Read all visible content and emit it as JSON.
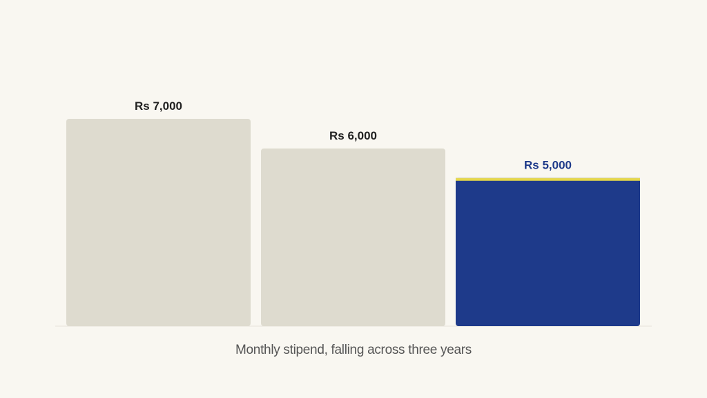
{
  "chart_data": {
    "type": "bar",
    "categories": [
      "",
      "",
      ""
    ],
    "values": [
      7000,
      6000,
      5000
    ],
    "value_labels": [
      "Rs 7,000",
      "Rs 6,000",
      "Rs 5,000"
    ],
    "caption": "Monthly stipend, falling across three years",
    "title": "",
    "xlabel": "",
    "ylabel": "",
    "ylim": [
      0,
      7000
    ],
    "grid": false,
    "legend": "none",
    "highlight_index": 2,
    "colors": {
      "background": "#f9f7f1",
      "bar": "#dedbcf",
      "highlight_bar": "#1e3a8a",
      "highlight_accent": "#e6d84a",
      "label": "#222222",
      "highlight_label": "#1e3a8a",
      "baseline": "#e6e3da",
      "caption": "#555555"
    }
  }
}
